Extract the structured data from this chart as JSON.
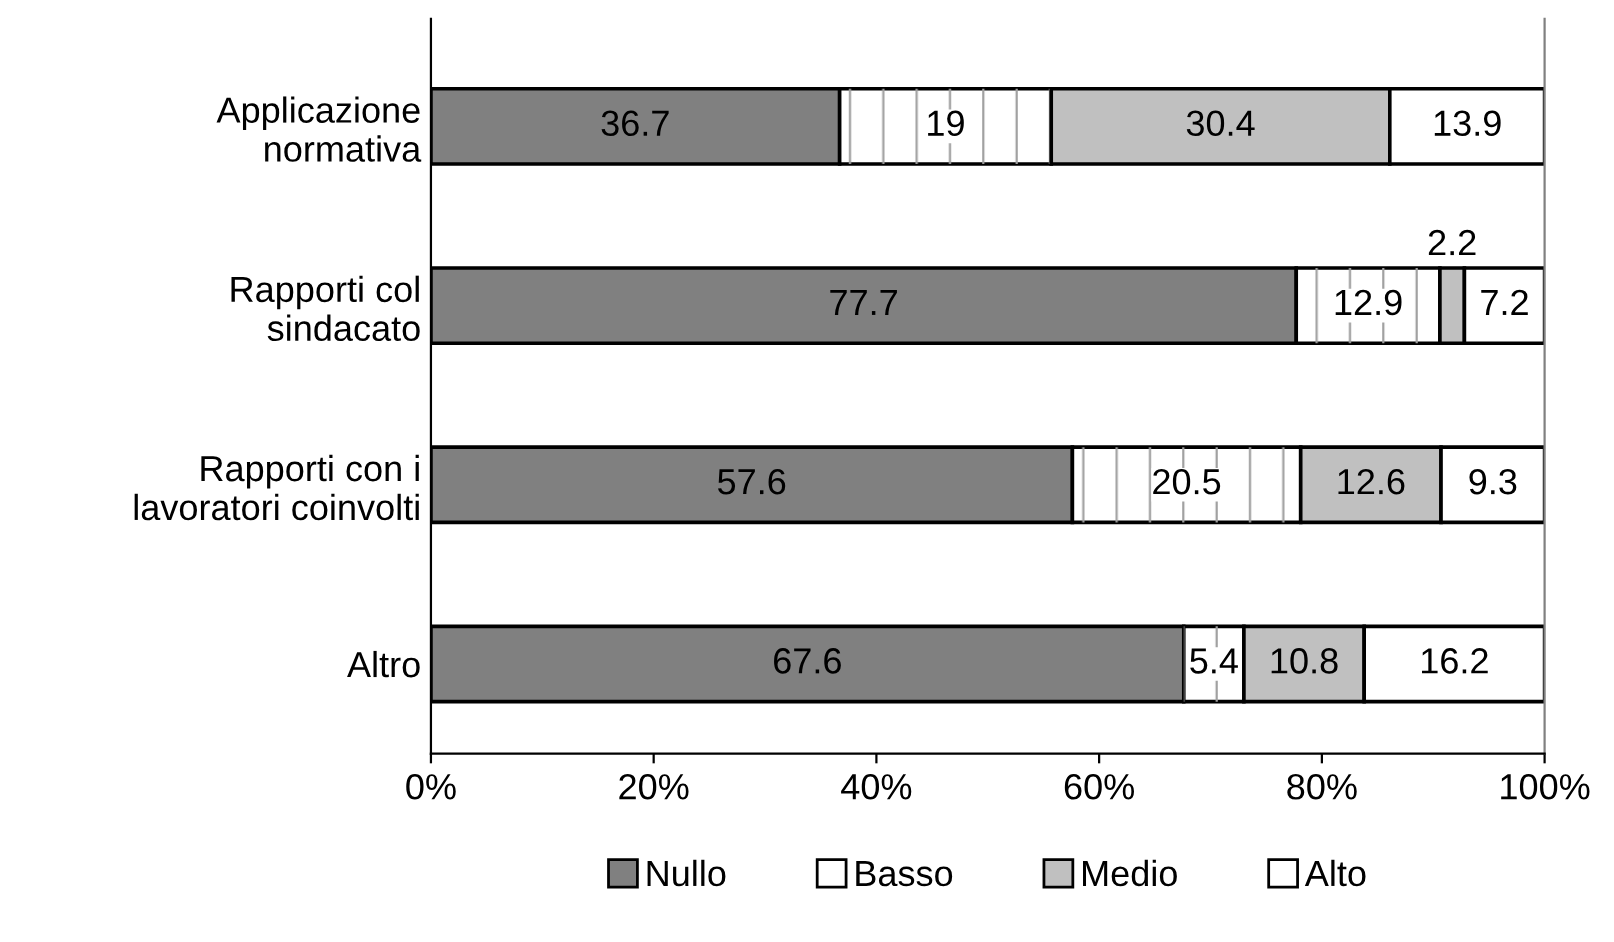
{
  "chart_data": {
    "type": "bar",
    "orientation": "horizontal",
    "stacked": true,
    "data_labels": true,
    "categories": [
      "Applicazione\nnormativa",
      "Rapporti col\nsindacato",
      "Rapporti con i\nlavoratori coinvolti",
      "Altro"
    ],
    "series": [
      {
        "name": "Nullo",
        "color": "#808080",
        "values": [
          36.7,
          77.7,
          57.6,
          67.6
        ]
      },
      {
        "name": "Basso",
        "color": "#ffffff",
        "values": [
          19,
          12.9,
          20.5,
          5.4
        ]
      },
      {
        "name": "Medio",
        "color": "#c0c0c0",
        "values": [
          30.4,
          2.2,
          12.6,
          10.8
        ]
      },
      {
        "name": "Alto",
        "color": "#ffffff",
        "values": [
          13.9,
          7.2,
          9.3,
          16.2
        ]
      }
    ],
    "xlim": [
      0,
      100
    ],
    "xticks": [
      {
        "value": 0,
        "label": "0%"
      },
      {
        "value": 20,
        "label": "20%"
      },
      {
        "value": 40,
        "label": "40%"
      },
      {
        "value": 60,
        "label": "60%"
      },
      {
        "value": 80,
        "label": "80%"
      },
      {
        "value": 100,
        "label": "100%"
      }
    ],
    "grid": false,
    "legend": "bottom"
  }
}
